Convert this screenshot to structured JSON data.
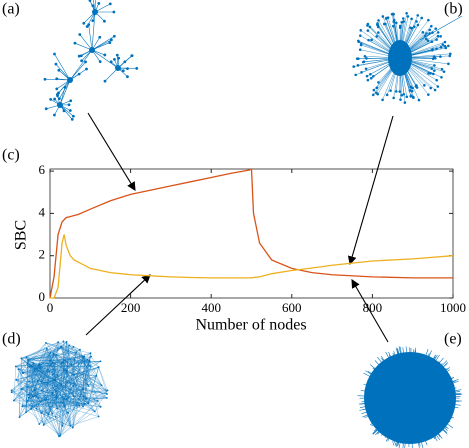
{
  "chart_data": {
    "type": "line",
    "panel_labels": [
      "(a)",
      "(b)",
      "(c)",
      "(d)",
      "(e)"
    ],
    "xlabel": "Number of nodes",
    "ylabel": "SBC",
    "x": [
      0,
      10,
      20,
      30,
      35,
      40,
      50,
      60,
      70,
      100,
      150,
      200,
      250,
      300,
      350,
      400,
      450,
      495,
      500,
      505,
      520,
      550,
      600,
      650,
      700,
      800,
      900,
      1000
    ],
    "series": [
      {
        "color": "#d95319",
        "values": [
          0,
          1,
          3,
          3.6,
          3.7,
          3.8,
          3.85,
          3.9,
          3.95,
          4.2,
          4.6,
          4.9,
          5.1,
          5.3,
          5.5,
          5.7,
          5.9,
          6.05,
          6.1,
          4,
          2.6,
          1.8,
          1.4,
          1.2,
          1.1,
          1.0,
          0.95,
          0.95
        ]
      },
      {
        "color": "#edb120",
        "values": [
          0,
          0,
          0.5,
          2.6,
          3.0,
          2.5,
          2.0,
          1.8,
          1.7,
          1.4,
          1.2,
          1.1,
          1.05,
          1.0,
          0.97,
          0.95,
          0.95,
          0.95,
          0.95,
          0.97,
          1.0,
          1.15,
          1.3,
          1.42,
          1.55,
          1.75,
          1.85,
          2.0
        ]
      }
    ],
    "xlim": [
      0,
      1000
    ],
    "xticks": [
      0,
      200,
      400,
      600,
      800,
      1000
    ],
    "ylim": [
      0,
      6.1
    ],
    "yticks": [
      0,
      2,
      4,
      6
    ]
  }
}
